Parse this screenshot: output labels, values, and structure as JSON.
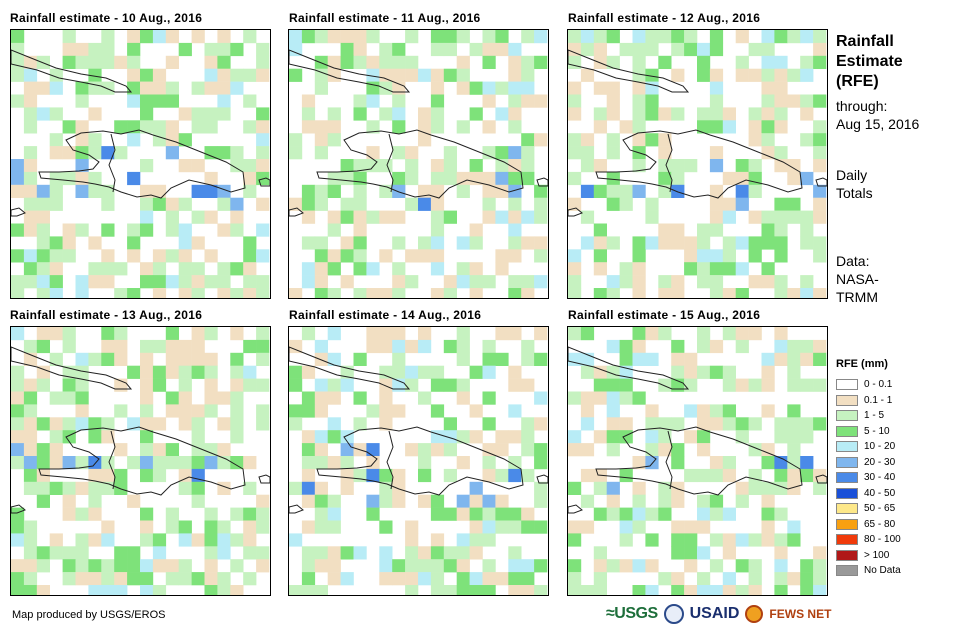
{
  "panels": [
    {
      "title": "Rainfall estimate - 10 Aug., 2016",
      "seed": 11
    },
    {
      "title": "Rainfall estimate - 11 Aug., 2016",
      "seed": 23
    },
    {
      "title": "Rainfall estimate - 12 Aug., 2016",
      "seed": 37
    },
    {
      "title": "Rainfall estimate - 13 Aug., 2016",
      "seed": 41
    },
    {
      "title": "Rainfall estimate - 14 Aug., 2016",
      "seed": 53
    },
    {
      "title": "Rainfall estimate - 15 Aug., 2016",
      "seed": 67
    }
  ],
  "sidebar": {
    "title_line1": "Rainfall",
    "title_line2": "Estimate",
    "title_line3": "(RFE)",
    "through_label": "through:",
    "through_date": "Aug 15, 2016",
    "daily_line1": "Daily",
    "daily_line2": "Totals",
    "data_line1": "Data:",
    "data_line2": "NASA-",
    "data_line3": "TRMM"
  },
  "legend": {
    "title": "RFE (mm)",
    "items": [
      {
        "label": "0 - 0.1",
        "color": "#ffffff"
      },
      {
        "label": "0.1 - 1",
        "color": "#f2dfc2"
      },
      {
        "label": "1 - 5",
        "color": "#c6f2c0"
      },
      {
        "label": "5 - 10",
        "color": "#7ee27a"
      },
      {
        "label": "10 - 20",
        "color": "#b8ecf6"
      },
      {
        "label": "20 - 30",
        "color": "#7fb6ee"
      },
      {
        "label": "30 - 40",
        "color": "#4a8ae8"
      },
      {
        "label": "40 - 50",
        "color": "#1a50d8"
      },
      {
        "label": "50 - 65",
        "color": "#fde88a"
      },
      {
        "label": "65 - 80",
        "color": "#f8a010"
      },
      {
        "label": "80 - 100",
        "color": "#f03a0a"
      },
      {
        "label": "> 100",
        "color": "#b01818"
      },
      {
        "label": "No Data",
        "color": "#999999"
      }
    ]
  },
  "footer": {
    "credit": "Map produced by USGS/EROS",
    "logo_usgs": "≈USGS",
    "logo_usaid": "USAID",
    "logo_fews": "FEWS NET"
  }
}
